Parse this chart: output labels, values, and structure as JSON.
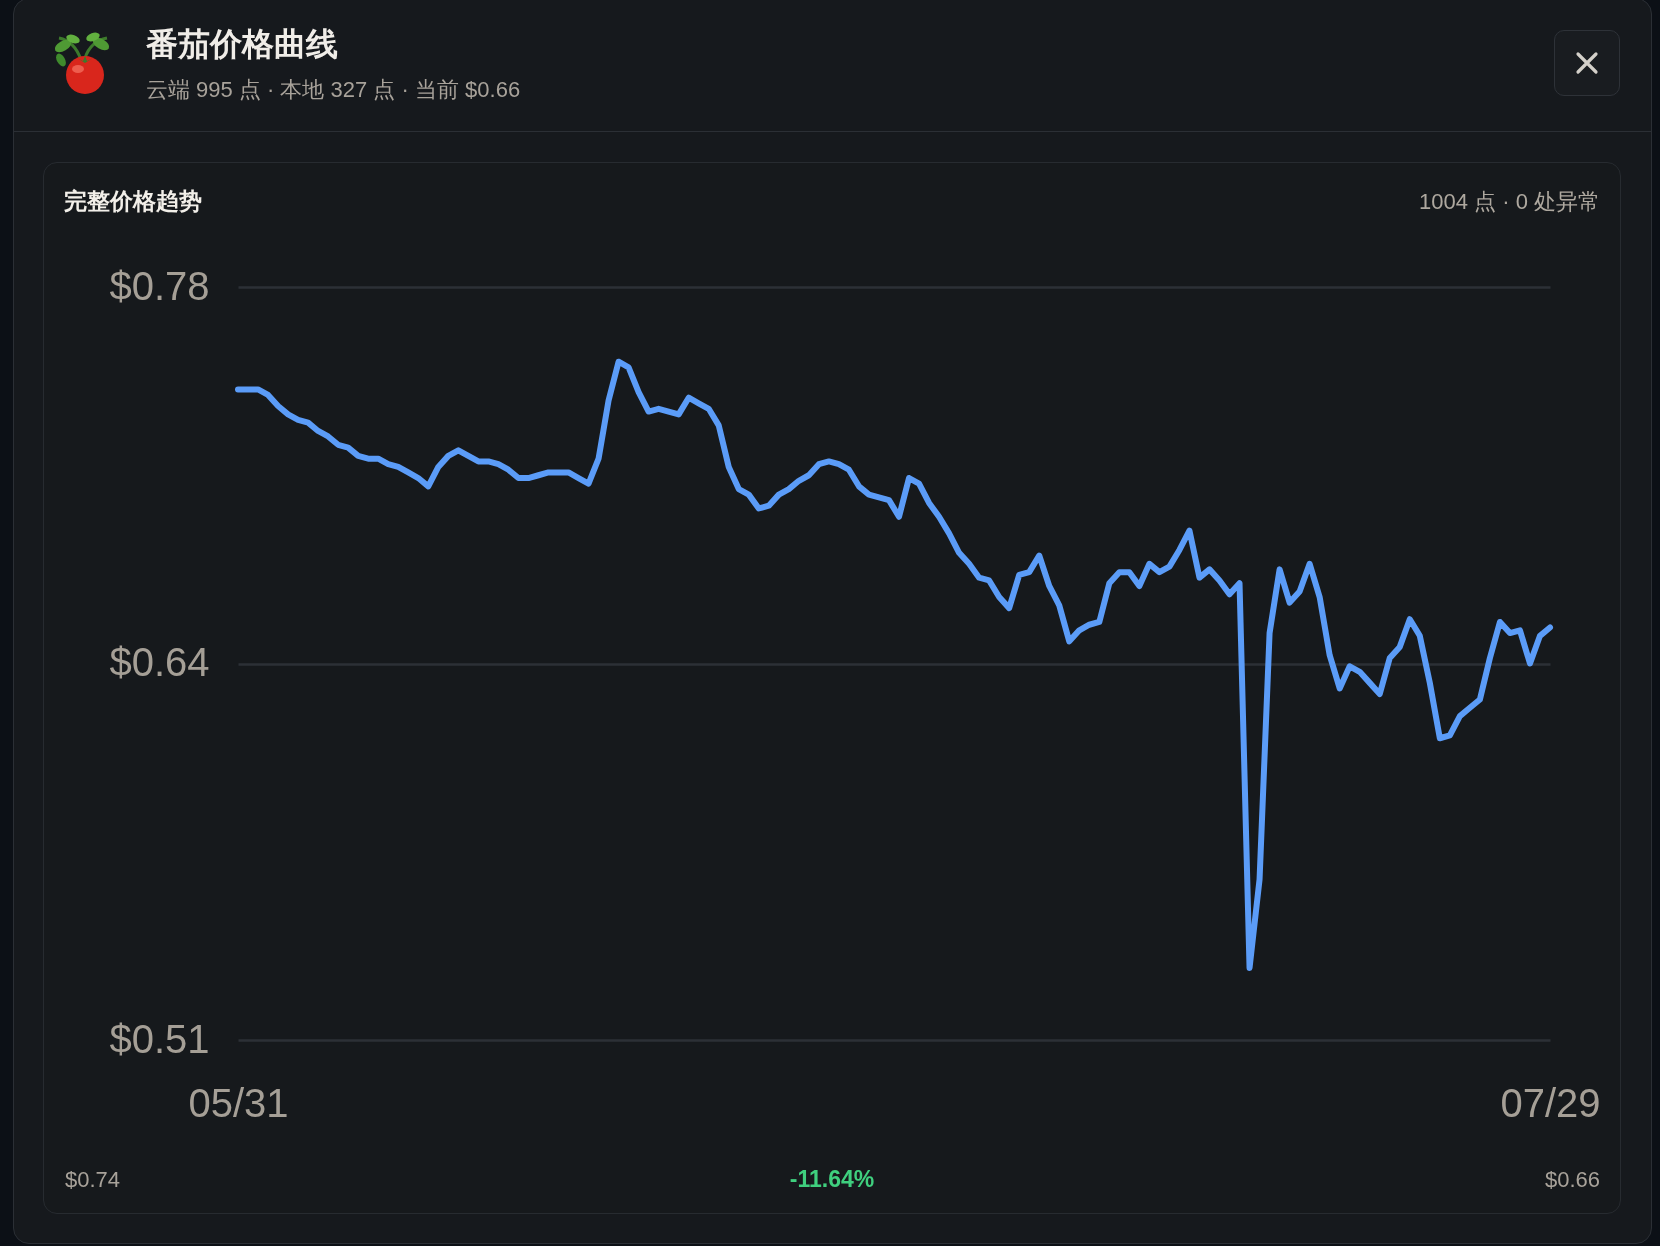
{
  "chart_data": {
    "type": "line",
    "title": "番茄价格曲线",
    "subtitle": "云端 995 点 · 本地 327 点 · 当前 $0.66",
    "annotations": [
      "完整价格趋势",
      "1004 点 · 0 处异常",
      "$0.74",
      "-11.64%",
      "$0.66"
    ],
    "categories": [
      "05/31",
      null,
      null,
      null,
      null,
      null,
      null,
      null,
      null,
      null,
      null,
      null,
      null,
      null,
      null,
      null,
      null,
      null,
      null,
      null,
      null,
      null,
      null,
      null,
      null,
      null,
      null,
      null,
      null,
      null,
      null,
      null,
      null,
      null,
      null,
      null,
      null,
      null,
      null,
      null,
      null,
      null,
      null,
      null,
      null,
      null,
      null,
      null,
      null,
      null,
      null,
      null,
      null,
      null,
      null,
      null,
      null,
      null,
      null,
      null,
      null,
      null,
      null,
      null,
      null,
      null,
      null,
      null,
      null,
      null,
      null,
      null,
      null,
      null,
      null,
      null,
      null,
      null,
      null,
      null,
      null,
      null,
      null,
      null,
      null,
      null,
      null,
      null,
      null,
      null,
      null,
      null,
      null,
      null,
      null,
      null,
      null,
      null,
      null,
      null,
      null,
      null,
      null,
      null,
      null,
      null,
      null,
      null,
      null,
      null,
      null,
      null,
      null,
      null,
      null,
      null,
      null,
      null,
      null,
      null,
      null,
      null,
      null,
      null,
      null,
      null,
      null,
      null,
      null,
      null,
      null,
      "07/29"
    ],
    "series": [
      {
        "color": "#5b9cf8",
        "values": [
          0.741,
          0.741,
          0.741,
          0.739,
          0.735,
          0.732,
          0.73,
          0.729,
          0.726,
          0.724,
          0.721,
          0.72,
          0.717,
          0.716,
          0.716,
          0.714,
          0.713,
          0.711,
          0.709,
          0.706,
          0.713,
          0.717,
          0.719,
          0.717,
          0.715,
          0.715,
          0.714,
          0.712,
          0.709,
          0.709,
          0.71,
          0.711,
          0.711,
          0.711,
          0.709,
          0.707,
          0.716,
          0.737,
          0.751,
          0.749,
          0.74,
          0.733,
          0.734,
          0.733,
          0.732,
          0.738,
          0.736,
          0.734,
          0.728,
          0.713,
          0.705,
          0.703,
          0.698,
          0.699,
          0.703,
          0.705,
          0.708,
          0.71,
          0.714,
          0.715,
          0.714,
          0.712,
          0.706,
          0.703,
          0.702,
          0.701,
          0.695,
          0.709,
          0.707,
          0.7,
          0.695,
          0.689,
          0.682,
          0.678,
          0.673,
          0.672,
          0.666,
          0.662,
          0.674,
          0.675,
          0.681,
          0.67,
          0.663,
          0.65,
          0.654,
          0.656,
          0.657,
          0.671,
          0.675,
          0.675,
          0.67,
          0.678,
          0.675,
          0.677,
          0.683,
          0.69,
          0.673,
          0.676,
          0.672,
          0.667,
          0.671,
          0.532,
          0.564,
          0.653,
          0.676,
          0.664,
          0.668,
          0.678,
          0.666,
          0.645,
          0.633,
          0.641,
          0.639,
          0.635,
          0.631,
          0.644,
          0.648,
          0.658,
          0.652,
          0.635,
          0.615,
          0.616,
          0.623,
          0.626,
          0.629,
          0.644,
          0.657,
          0.653,
          0.654,
          0.642,
          0.652,
          0.655
        ]
      }
    ],
    "ylim": [
      0.506,
      0.778
    ],
    "yticks": [
      {
        "value": 0.506,
        "label": "$0.51"
      },
      {
        "value": 0.642,
        "label": "$0.64"
      },
      {
        "value": 0.778,
        "label": "$0.78"
      }
    ],
    "grid": "y",
    "line_style": "solid"
  }
}
